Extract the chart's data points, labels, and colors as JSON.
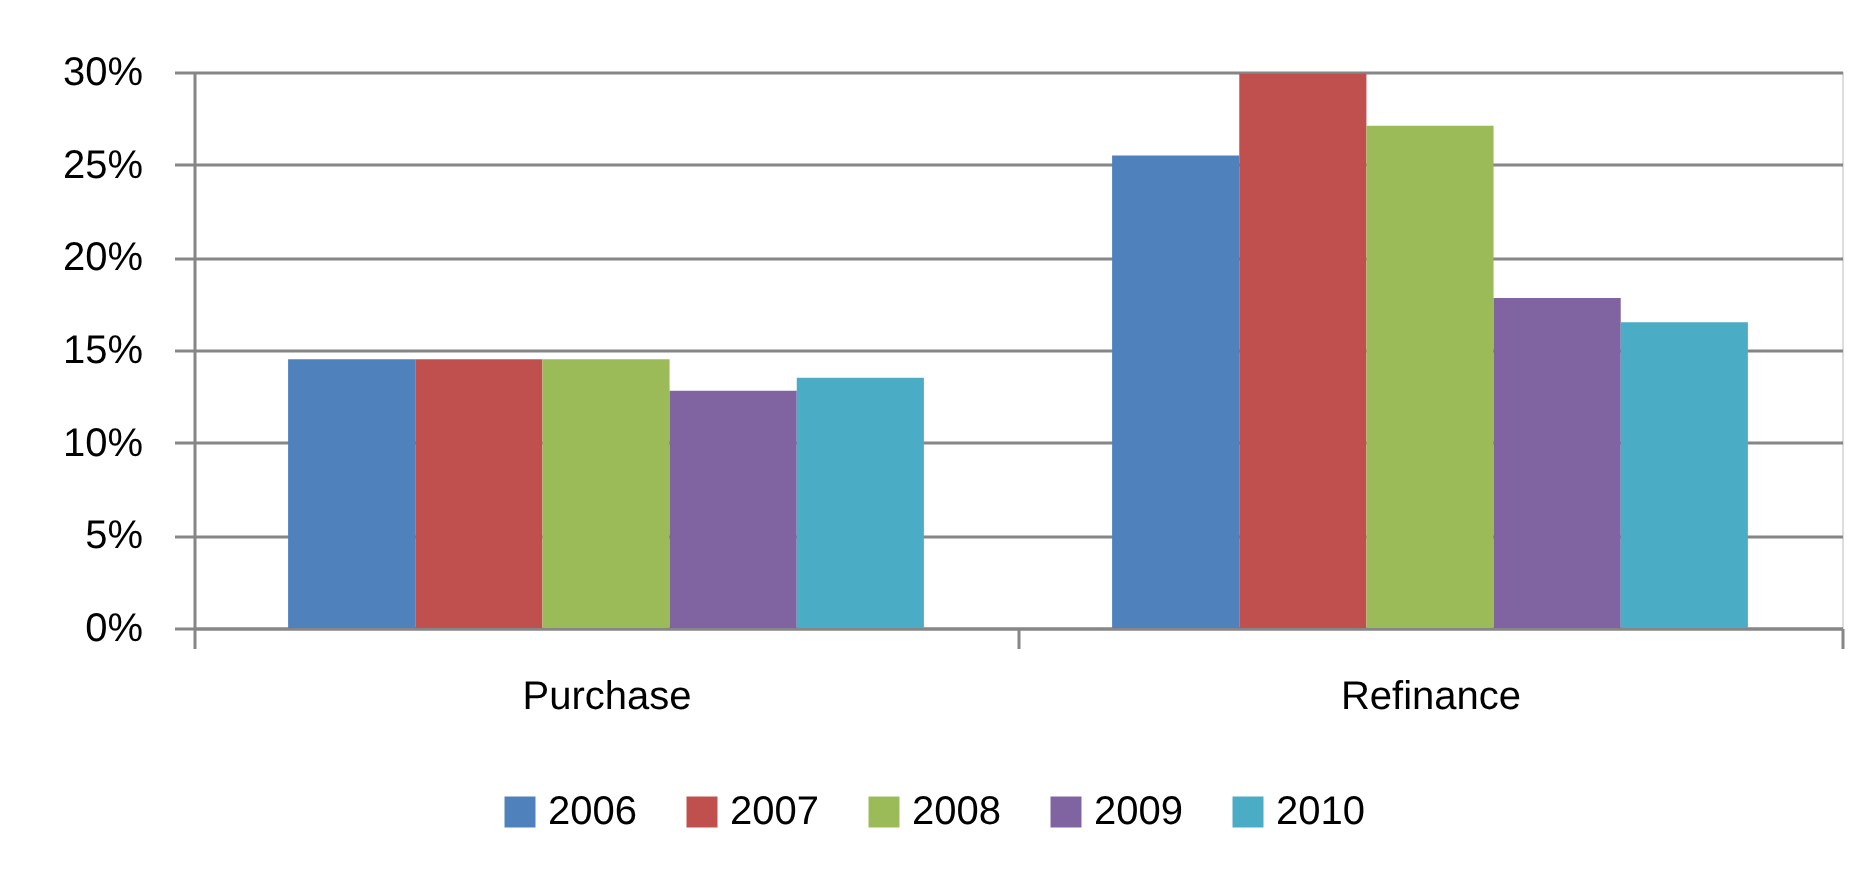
{
  "chart_data": {
    "type": "bar",
    "categories": [
      "Purchase",
      "Refinance"
    ],
    "series": [
      {
        "name": "2006",
        "color": "#4f81bd",
        "values": [
          14.5,
          25.5
        ]
      },
      {
        "name": "2007",
        "color": "#c0504d",
        "values": [
          14.5,
          29.9
        ]
      },
      {
        "name": "2008",
        "color": "#9bbb59",
        "values": [
          14.5,
          27.1
        ]
      },
      {
        "name": "2009",
        "color": "#8064a2",
        "values": [
          12.8,
          17.8
        ]
      },
      {
        "name": "2010",
        "color": "#4bacc6",
        "values": [
          13.5,
          16.5
        ]
      }
    ],
    "ylim": [
      0,
      30
    ],
    "yticks": [
      {
        "value": 0,
        "label": "0%"
      },
      {
        "value": 5,
        "label": "5%"
      },
      {
        "value": 10,
        "label": "10%"
      },
      {
        "value": 15,
        "label": "15%"
      },
      {
        "value": 20,
        "label": "20%"
      },
      {
        "value": 25,
        "label": "25%"
      },
      {
        "value": 30,
        "label": "30%"
      }
    ],
    "grid": "y",
    "legend": "bottom"
  }
}
